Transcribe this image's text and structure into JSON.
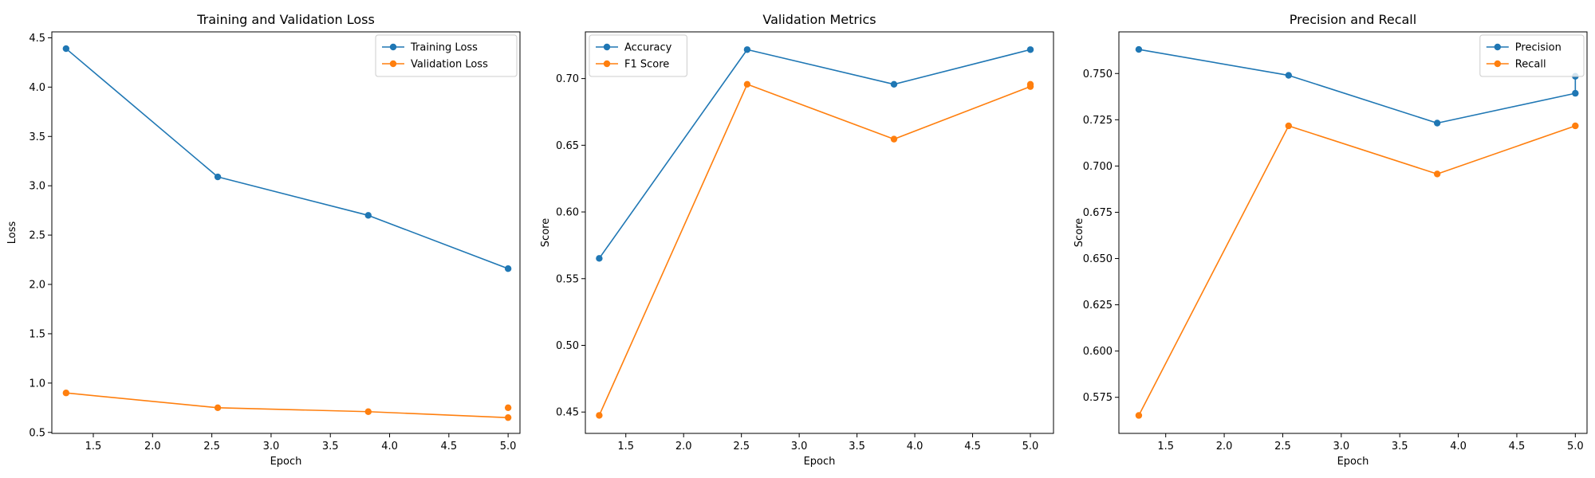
{
  "chart_data": [
    {
      "type": "line",
      "title": "Training and Validation Loss",
      "xlabel": "Epoch",
      "ylabel": "Loss",
      "xlim": [
        1.15,
        5.1
      ],
      "ylim": [
        0.49,
        4.56
      ],
      "xticks": [
        1.5,
        2.0,
        2.5,
        3.0,
        3.5,
        4.0,
        4.5,
        5.0
      ],
      "xtick_labels": [
        "1.5",
        "2.0",
        "2.5",
        "3.0",
        "3.5",
        "4.0",
        "4.5",
        "5.0"
      ],
      "yticks": [
        0.5,
        1.0,
        1.5,
        2.0,
        2.5,
        3.0,
        3.5,
        4.0,
        4.5
      ],
      "ytick_labels": [
        "0.5",
        "1.0",
        "1.5",
        "2.0",
        "2.5",
        "3.0",
        "3.5",
        "4.0",
        "4.5"
      ],
      "legend_position": "upper right",
      "grid": false,
      "series": [
        {
          "name": "Training Loss",
          "color": "#1f77b4",
          "x": [
            1.27,
            2.55,
            3.82,
            5.0
          ],
          "y": [
            4.39,
            3.09,
            2.7,
            2.16
          ],
          "extra_points": []
        },
        {
          "name": "Validation Loss",
          "color": "#ff7f0e",
          "x": [
            1.27,
            2.55,
            3.82,
            5.0
          ],
          "y": [
            0.9,
            0.75,
            0.71,
            0.65
          ],
          "extra_points": [
            {
              "x": 5.0,
              "y": 0.75
            }
          ]
        }
      ]
    },
    {
      "type": "line",
      "title": "Validation Metrics",
      "xlabel": "Epoch",
      "ylabel": "Score",
      "xlim": [
        1.15,
        5.2
      ],
      "ylim": [
        0.434,
        0.735
      ],
      "xticks": [
        1.5,
        2.0,
        2.5,
        3.0,
        3.5,
        4.0,
        4.5,
        5.0
      ],
      "xtick_labels": [
        "1.5",
        "2.0",
        "2.5",
        "3.0",
        "3.5",
        "4.0",
        "4.5",
        "5.0"
      ],
      "yticks": [
        0.45,
        0.5,
        0.55,
        0.6,
        0.65,
        0.7
      ],
      "ytick_labels": [
        "0.45",
        "0.50",
        "0.55",
        "0.60",
        "0.65",
        "0.70"
      ],
      "legend_position": "upper left",
      "grid": false,
      "series": [
        {
          "name": "Accuracy",
          "color": "#1f77b4",
          "x": [
            1.27,
            2.55,
            3.82,
            5.0
          ],
          "y": [
            0.5652,
            0.7217,
            0.6957,
            0.7217
          ],
          "extra_points": []
        },
        {
          "name": "F1 Score",
          "color": "#ff7f0e",
          "x": [
            1.27,
            2.55,
            3.82,
            5.0
          ],
          "y": [
            0.4475,
            0.6957,
            0.6546,
            0.694
          ],
          "extra_points": [
            {
              "x": 5.0,
              "y": 0.6957
            }
          ]
        }
      ]
    },
    {
      "type": "line",
      "title": "Precision and Recall",
      "xlabel": "Epoch",
      "ylabel": "Score",
      "xlim": [
        1.1,
        5.1
      ],
      "ylim": [
        0.5555,
        0.7725
      ],
      "xticks": [
        1.5,
        2.0,
        2.5,
        3.0,
        3.5,
        4.0,
        4.5,
        5.0
      ],
      "xtick_labels": [
        "1.5",
        "2.0",
        "2.5",
        "3.0",
        "3.5",
        "4.0",
        "4.5",
        "5.0"
      ],
      "yticks": [
        0.575,
        0.6,
        0.625,
        0.65,
        0.675,
        0.7,
        0.725,
        0.75
      ],
      "ytick_labels": [
        "0.575",
        "0.600",
        "0.625",
        "0.650",
        "0.675",
        "0.700",
        "0.725",
        "0.750"
      ],
      "legend_position": "upper right",
      "grid": false,
      "series": [
        {
          "name": "Precision",
          "color": "#1f77b4",
          "x": [
            1.27,
            2.55,
            3.82,
            5.0,
            5.0
          ],
          "y": [
            0.763,
            0.749,
            0.7232,
            0.7393,
            0.7485
          ],
          "extra_points": []
        },
        {
          "name": "Recall",
          "color": "#ff7f0e",
          "x": [
            1.27,
            2.55,
            3.82,
            5.0
          ],
          "y": [
            0.5652,
            0.7217,
            0.6957,
            0.7217
          ],
          "extra_points": []
        }
      ]
    }
  ]
}
